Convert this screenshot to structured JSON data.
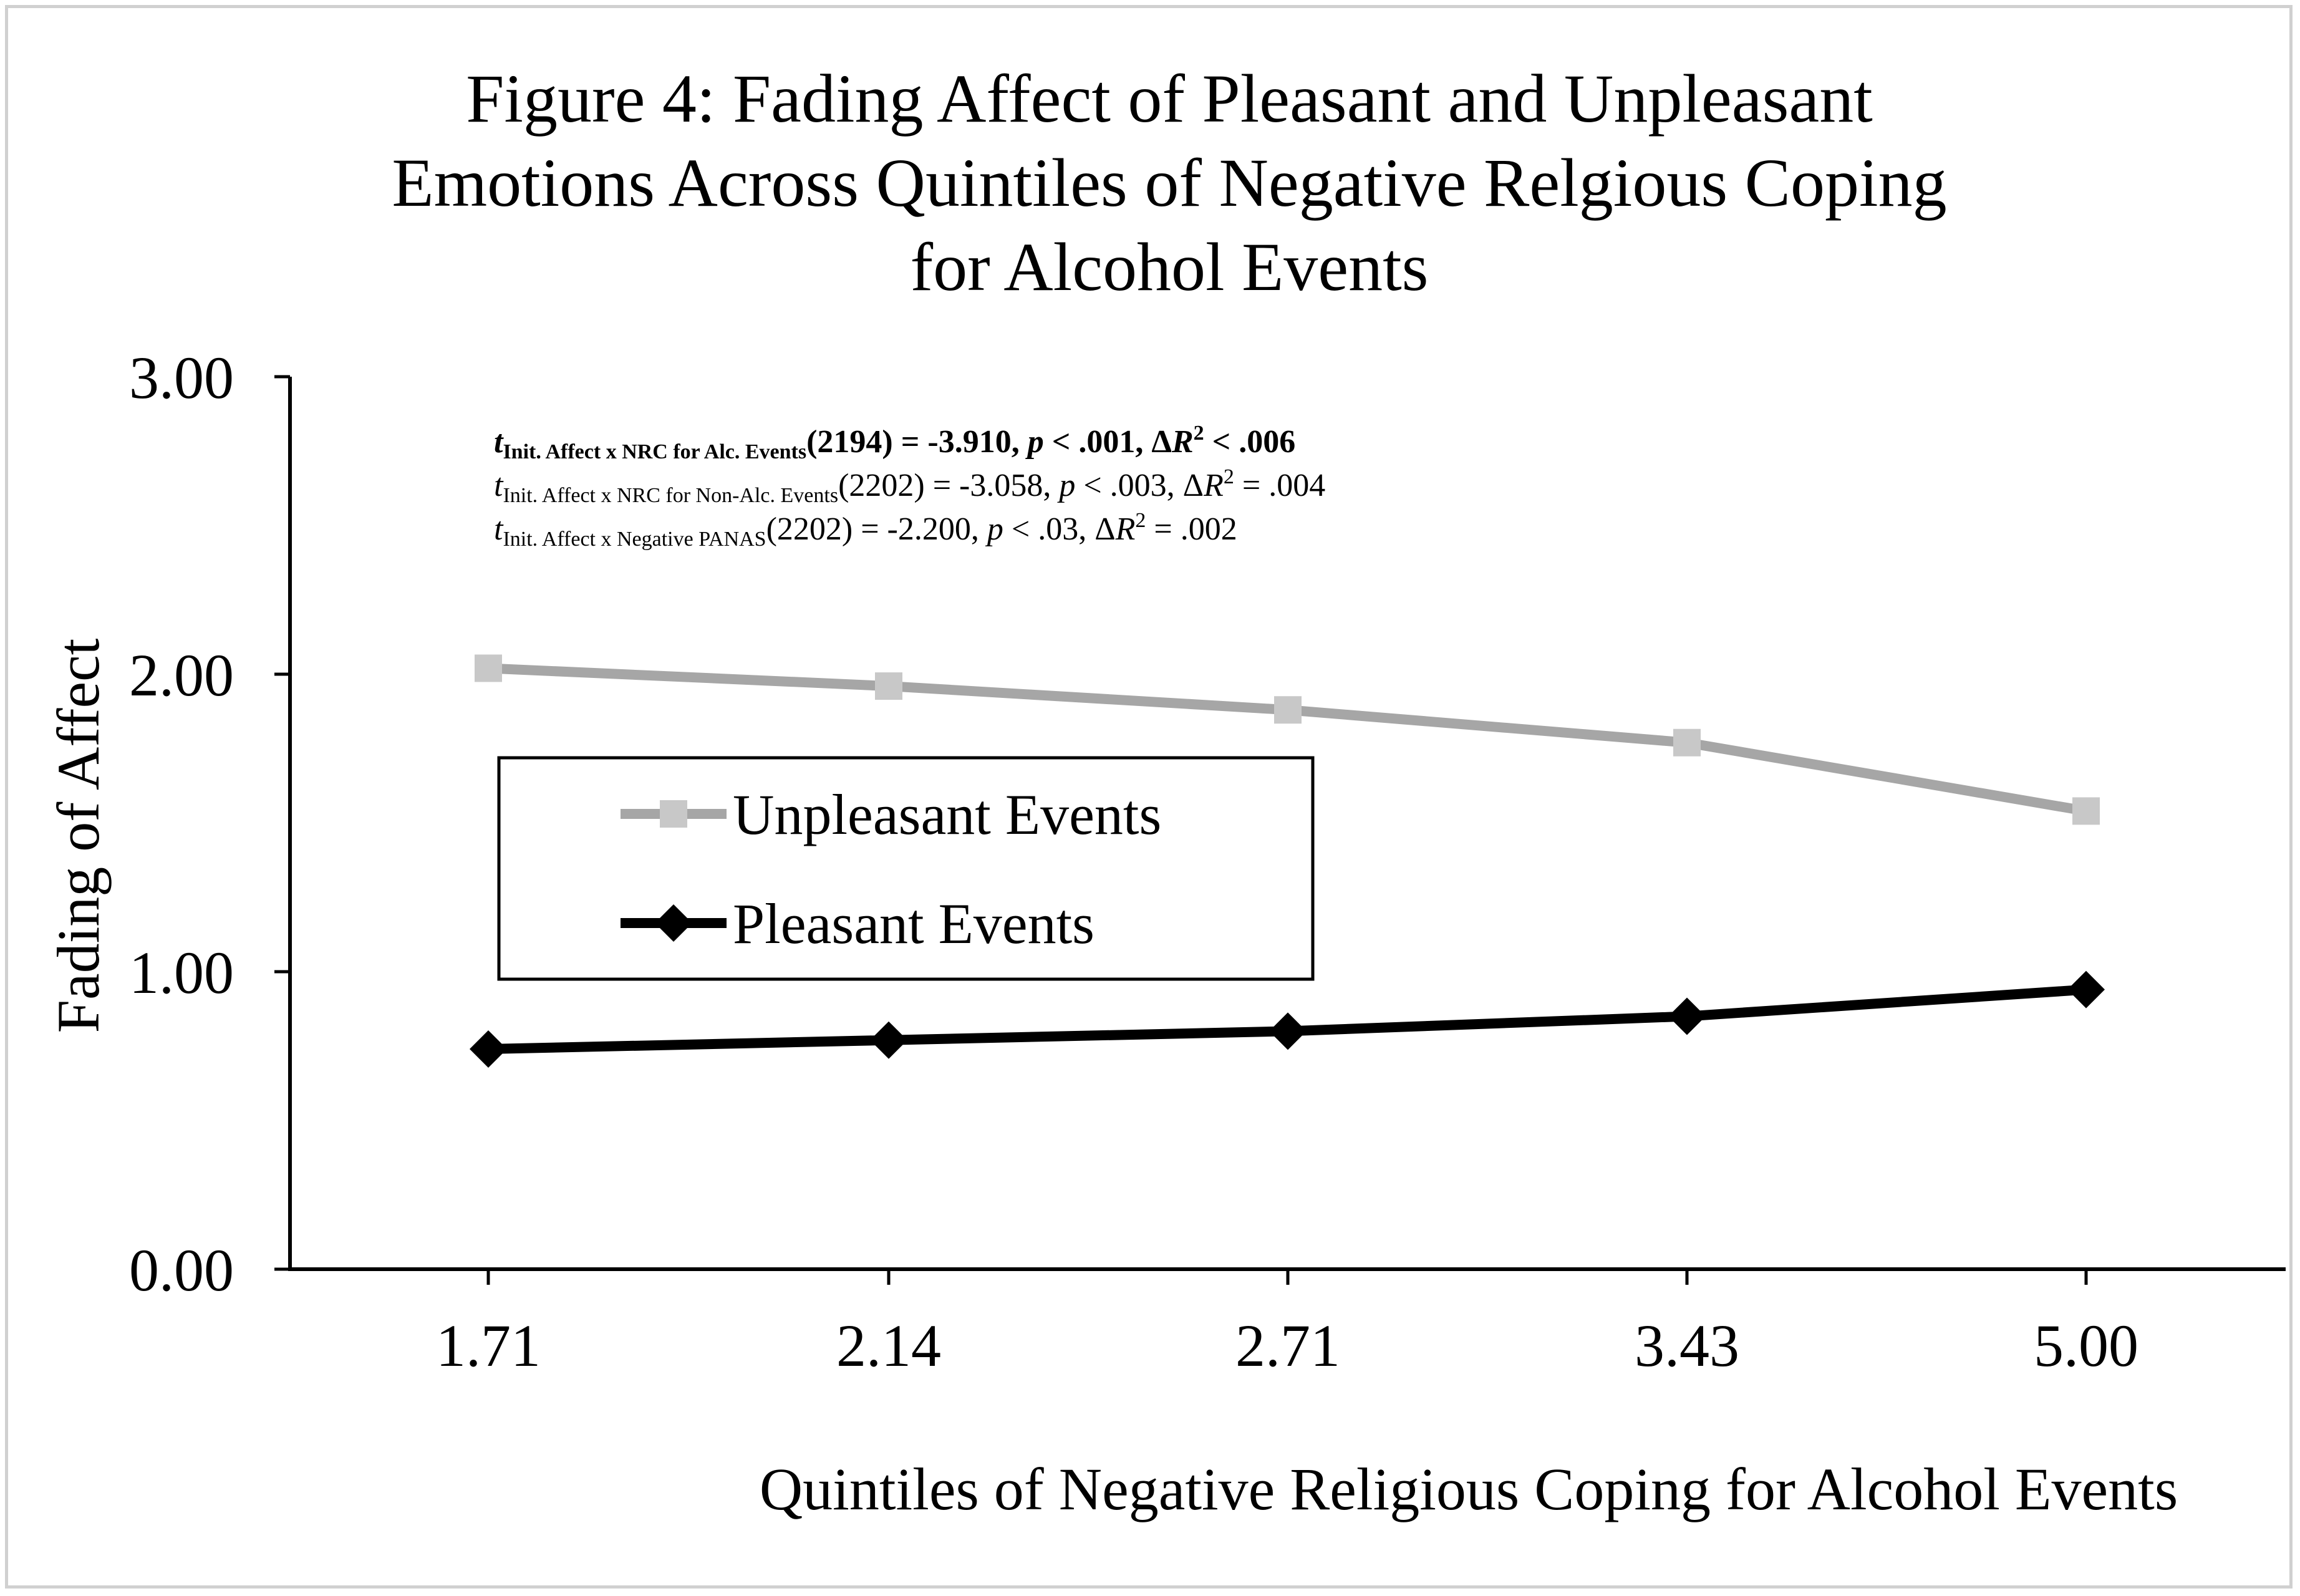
{
  "chart_data": {
    "type": "line",
    "title": "Figure 4: Fading Affect of Pleasant and Unpleasant Emotions Across Quintiles of Negative Relgious Coping for Alcohol Events",
    "title_lines": [
      "Figure 4: Fading Affect of Pleasant and Unpleasant",
      "Emotions Across Quintiles of Negative Relgious Coping",
      "for Alcohol Events"
    ],
    "xlabel": "Quintiles of Negative Religious Coping for Alcohol Events",
    "ylabel": "Fading of Affect",
    "categories": [
      "1.71",
      "2.14",
      "2.71",
      "3.43",
      "5.00"
    ],
    "ylim": [
      0,
      3
    ],
    "yticks": [
      "0.00",
      "1.00",
      "2.00",
      "3.00"
    ],
    "grid": false,
    "legend_position": "center-left",
    "series": [
      {
        "name": "Unpleasant Events",
        "color": "#a6a6a6",
        "marker": "square",
        "values": [
          2.02,
          1.96,
          1.88,
          1.77,
          1.54
        ]
      },
      {
        "name": "Pleasant Events",
        "color": "#000000",
        "marker": "diamond",
        "values": [
          0.74,
          0.77,
          0.8,
          0.85,
          0.94
        ]
      }
    ],
    "annotations": [
      {
        "t_sub": "Init. Affect x NRC for Alc. Events",
        "rest": "(2194) = -3.910, ",
        "p": "p",
        "p_rest": " < .001, Δ",
        "r": "R",
        "sup": "2",
        "tail": " < .006",
        "bold": true
      },
      {
        "t_sub": "Init. Affect  x NRC for Non-Alc. Events",
        "rest": "(2202) = -3.058, ",
        "p": "p",
        "p_rest": " < .003, Δ",
        "r": "R",
        "sup": "2",
        "tail": " = .004",
        "bold": false
      },
      {
        "t_sub": "Init. Affect  x Negative PANAS",
        "rest": "(2202) = -2.200, ",
        "p": "p",
        "p_rest": " < .03, Δ",
        "r": "R",
        "sup": "2",
        "tail": " = .002",
        "bold": false
      }
    ]
  }
}
